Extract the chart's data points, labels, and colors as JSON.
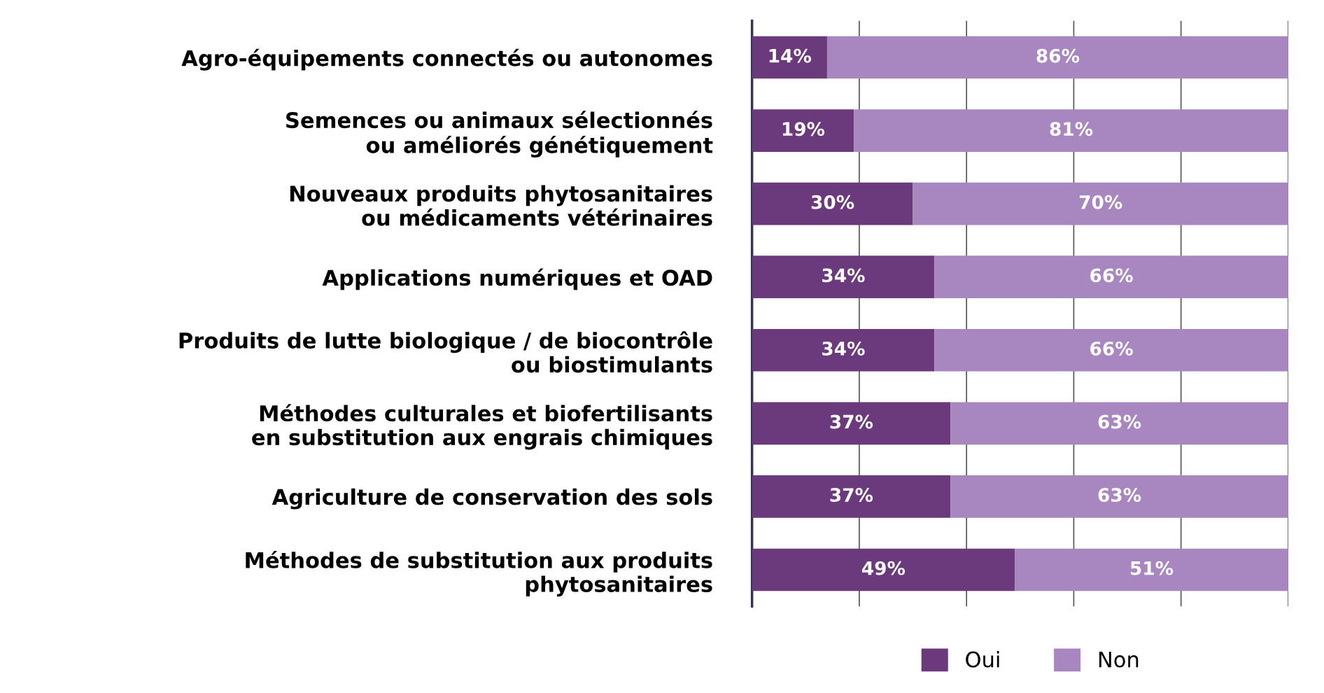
{
  "chart_data": {
    "type": "bar",
    "orientation": "horizontal",
    "stacked": true,
    "categories": [
      "Agro-équipements connectés ou autonomes",
      "Semences ou animaux sélectionnés\nou améliorés génétiquement",
      "Nouveaux produits phytosanitaires\nou médicaments vétérinaires",
      "Applications numériques et OAD",
      "Produits de lutte biologique / de biocontrôle\nou biostimulants",
      "Méthodes culturales et biofertilisants\nen substitution aux engrais chimiques",
      "Agriculture de conservation des sols",
      "Méthodes de substitution aux produits\nphytosanitaires"
    ],
    "series": [
      {
        "name": "Oui",
        "color": "#6b3a7d",
        "values": [
          14,
          19,
          30,
          34,
          34,
          37,
          37,
          49
        ],
        "value_labels": [
          "14%",
          "19%",
          "30%",
          "34%",
          "34%",
          "37%",
          "37%",
          "49%"
        ]
      },
      {
        "name": "Non",
        "color": "#a887c0",
        "values": [
          86,
          81,
          70,
          66,
          66,
          63,
          63,
          51
        ],
        "value_labels": [
          "86%",
          "81%",
          "70%",
          "66%",
          "66%",
          "63%",
          "63%",
          "51%"
        ]
      }
    ],
    "xlim": [
      0,
      100
    ],
    "xticks": [
      {
        "value": 0,
        "label": null
      },
      {
        "value": 20,
        "label": null
      },
      {
        "value": 40,
        "label": null
      },
      {
        "value": 60,
        "label": null
      },
      {
        "value": 80,
        "label": null
      },
      {
        "value": 100,
        "label": null
      }
    ],
    "tick_labels": "y",
    "grid": "x",
    "legend": "bottom"
  }
}
